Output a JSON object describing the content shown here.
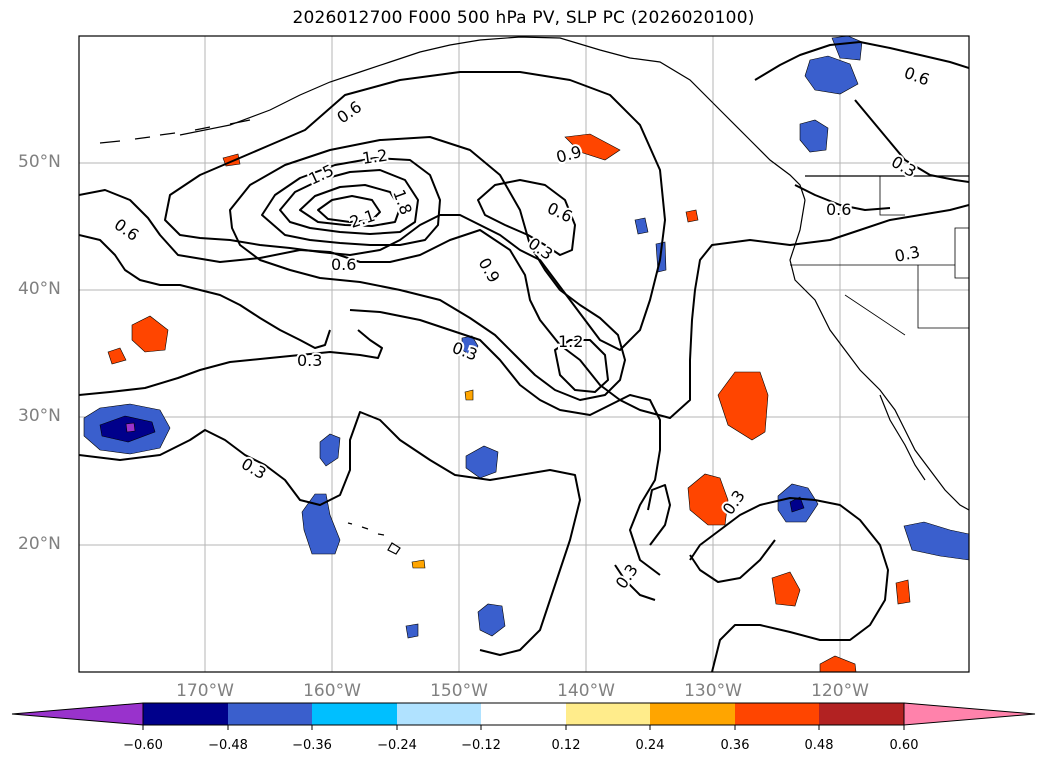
{
  "title": "2026012700 F000 500 hPa PV, SLP PC (2026020100)",
  "map": {
    "lat_labels": [
      "50°N",
      "40°N",
      "30°N",
      "20°N"
    ],
    "lon_labels": [
      "170°W",
      "160°W",
      "150°W",
      "140°W",
      "130°W",
      "120°W"
    ],
    "contour_labels": [
      "0.6",
      "1.2",
      "1.5",
      "2.1",
      "1.8",
      "0.9",
      "0.6",
      "0.3",
      "0.9",
      "0.6",
      "0.3",
      "1.2",
      "0.6",
      "0.3",
      "0.3",
      "0.3",
      "0.3",
      "0.6",
      "0.3",
      "0.6",
      "0.3"
    ],
    "extent": {
      "lon": [
        -180,
        -110
      ],
      "lat": [
        10,
        60
      ]
    }
  },
  "colorbar": {
    "tick_labels": [
      "−0.60",
      "−0.48",
      "−0.36",
      "−0.24",
      "−0.12",
      "0.12",
      "0.24",
      "0.36",
      "0.48",
      "0.60"
    ],
    "colors": [
      "#9932cc",
      "#00008b",
      "#3a5fcd",
      "#00bfff",
      "#b0e2ff",
      "#ffffff",
      "#ffec8b",
      "#ffa500",
      "#ff4500",
      "#b22222",
      "#ff82ab"
    ]
  }
}
